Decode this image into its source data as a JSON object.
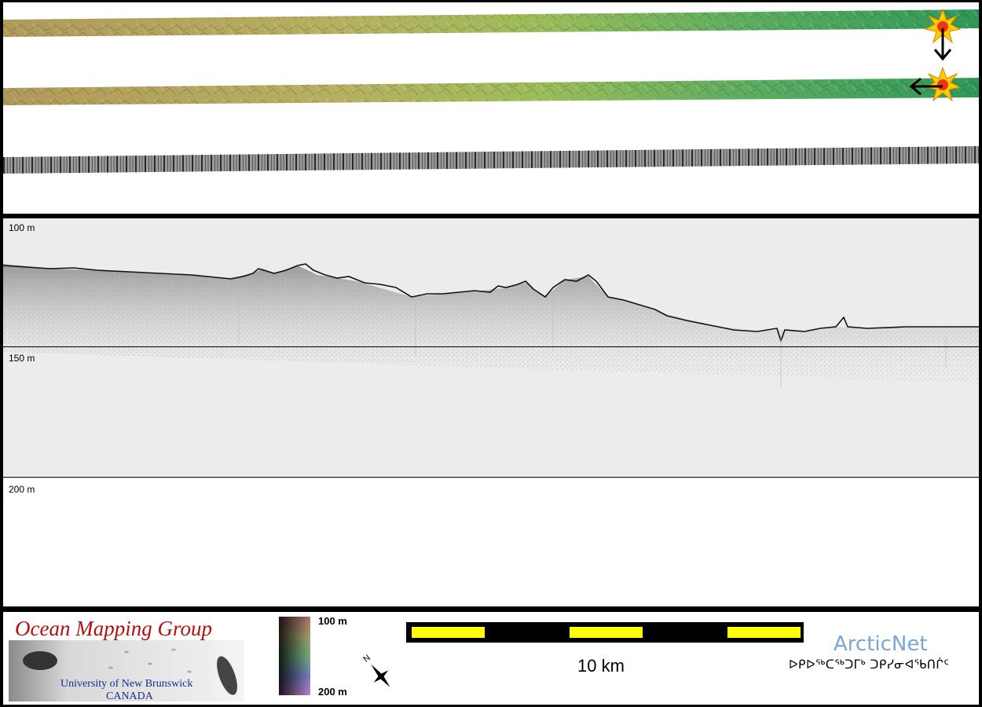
{
  "depth_labels": {
    "top": "100 m",
    "middle": "150 m",
    "bottom": "200 m"
  },
  "legend": {
    "colorbar_top": "100 m",
    "colorbar_bottom": "200 m"
  },
  "scalebar": {
    "label": "10 km"
  },
  "logos": {
    "omg_title": "Ocean Mapping Group",
    "omg_university": "University of New Brunswick",
    "omg_country": "CANADA",
    "arcticnet_name": "ArcticNet",
    "arcticnet_syllabics": "ᐅᑭᐅᖅᑕᖅᑐᒥᒃ ᑐᑭᓯᓂᐊᖃᑎᒌᑦ"
  },
  "colors": {
    "frame": "#000000",
    "strip_olive": "#a39a52",
    "strip_green": "#3a9a5a",
    "profile_bg": "#ececec",
    "scale_yellow": "#ffff00",
    "omg_red": "#b01010",
    "arcticnet_blue": "#7aa7d8"
  },
  "icons": {
    "markers": [
      "sun-burst-icon",
      "down-arrow-icon",
      "left-arrow-icon"
    ],
    "north": "north-arrow-icon"
  }
}
